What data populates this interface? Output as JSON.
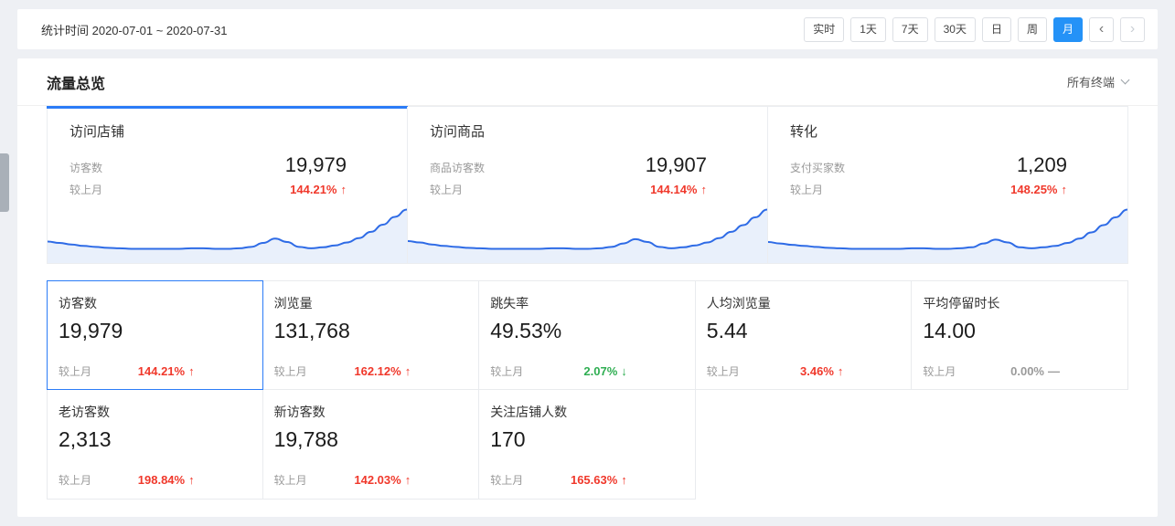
{
  "icons": {
    "up": "↑",
    "down": "↓",
    "flat": "—",
    "prev": "‹",
    "next": "›"
  },
  "colors": {
    "accent": "#2b7cf7",
    "up_red": "#f0382b",
    "down_green": "#2fae52",
    "chart_line": "#2e6be6",
    "chart_fill": "#e9f0fb"
  },
  "topbar": {
    "date_label": "统计时间 2020-07-01 ~ 2020-07-31",
    "buttons": [
      "实时",
      "1天",
      "7天",
      "30天",
      "日",
      "周",
      "月"
    ],
    "active_button": "月"
  },
  "panel": {
    "title": "流量总览",
    "terminal_filter": "所有终端"
  },
  "summary_cards": [
    {
      "title": "访问店铺",
      "metric_label": "访客数",
      "value": "19,979",
      "compare_label": "较上月",
      "change": "144.21%",
      "direction": "up",
      "selected": true
    },
    {
      "title": "访问商品",
      "metric_label": "商品访客数",
      "value": "19,907",
      "compare_label": "较上月",
      "change": "144.14%",
      "direction": "up",
      "selected": false
    },
    {
      "title": "转化",
      "metric_label": "支付买家数",
      "value": "1,209",
      "compare_label": "较上月",
      "change": "148.25%",
      "direction": "up",
      "selected": false
    }
  ],
  "metric_tiles": [
    {
      "label": "访客数",
      "value": "19,979",
      "compare_label": "较上月",
      "change": "144.21%",
      "direction": "up",
      "selected": true
    },
    {
      "label": "浏览量",
      "value": "131,768",
      "compare_label": "较上月",
      "change": "162.12%",
      "direction": "up",
      "selected": false
    },
    {
      "label": "跳失率",
      "value": "49.53%",
      "compare_label": "较上月",
      "change": "2.07%",
      "direction": "down",
      "selected": false
    },
    {
      "label": "人均浏览量",
      "value": "5.44",
      "compare_label": "较上月",
      "change": "3.46%",
      "direction": "up",
      "selected": false
    },
    {
      "label": "平均停留时长",
      "value": "14.00",
      "compare_label": "较上月",
      "change": "0.00%",
      "direction": "flat",
      "selected": false
    },
    {
      "label": "老访客数",
      "value": "2,313",
      "compare_label": "较上月",
      "change": "198.84%",
      "direction": "up",
      "selected": false
    },
    {
      "label": "新访客数",
      "value": "19,788",
      "compare_label": "较上月",
      "change": "142.03%",
      "direction": "up",
      "selected": false
    },
    {
      "label": "关注店铺人数",
      "value": "170",
      "compare_label": "较上月",
      "change": "165.63%",
      "direction": "up",
      "selected": false
    }
  ],
  "chart_data": {
    "type": "line",
    "legend": false,
    "grid": false,
    "series": [
      {
        "name": "访问店铺-访客数",
        "values": [
          34,
          31,
          28,
          25,
          23,
          21,
          20,
          19,
          19,
          19,
          19,
          19,
          20,
          20,
          19,
          19,
          20,
          23,
          31,
          40,
          33,
          23,
          20,
          22,
          26,
          32,
          41,
          54,
          69,
          85,
          100
        ]
      },
      {
        "name": "访问商品-商品访客数",
        "values": [
          35,
          32,
          28,
          25,
          23,
          21,
          20,
          19,
          19,
          19,
          19,
          19,
          20,
          20,
          19,
          19,
          20,
          23,
          30,
          39,
          33,
          23,
          20,
          22,
          26,
          32,
          41,
          54,
          68,
          84,
          100
        ]
      },
      {
        "name": "转化-支付买家数",
        "values": [
          33,
          30,
          27,
          25,
          23,
          21,
          20,
          19,
          19,
          19,
          19,
          19,
          20,
          20,
          19,
          19,
          20,
          22,
          30,
          38,
          32,
          22,
          20,
          22,
          25,
          31,
          40,
          53,
          68,
          84,
          100
        ]
      }
    ],
    "line_color": "#2e6be6",
    "fill_color": "#e9f0fb"
  }
}
